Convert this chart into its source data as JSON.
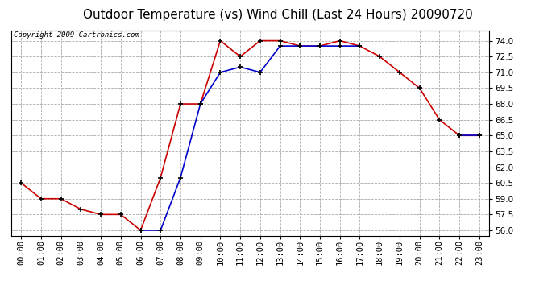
{
  "title": "Outdoor Temperature (vs) Wind Chill (Last 24 Hours) 20090720",
  "copyright_text": "Copyright 2009 Cartronics.com",
  "hours": [
    "00:00",
    "01:00",
    "02:00",
    "03:00",
    "04:00",
    "05:00",
    "06:00",
    "07:00",
    "08:00",
    "09:00",
    "10:00",
    "11:00",
    "12:00",
    "13:00",
    "14:00",
    "15:00",
    "16:00",
    "17:00",
    "18:00",
    "19:00",
    "20:00",
    "21:00",
    "22:00",
    "23:00"
  ],
  "temp": [
    60.5,
    59.0,
    59.0,
    58.0,
    57.5,
    57.5,
    56.0,
    61.0,
    68.0,
    68.0,
    74.0,
    72.5,
    74.0,
    74.0,
    73.5,
    73.5,
    74.0,
    73.5,
    72.5,
    71.0,
    69.5,
    66.5,
    65.0,
    65.0
  ],
  "windchill": [
    null,
    null,
    null,
    null,
    null,
    null,
    56.0,
    56.0,
    61.0,
    68.0,
    71.0,
    71.5,
    71.0,
    73.5,
    73.5,
    73.5,
    73.5,
    73.5,
    null,
    null,
    null,
    null,
    65.0,
    65.0
  ],
  "ylim": [
    55.5,
    75.0
  ],
  "yticks": [
    56.0,
    57.5,
    59.0,
    60.5,
    62.0,
    63.5,
    65.0,
    66.5,
    68.0,
    69.5,
    71.0,
    72.5,
    74.0
  ],
  "temp_color": "#cc0000",
  "windchill_color": "#0000cc",
  "background_color": "#ffffff",
  "grid_color": "#aaaaaa",
  "title_fontsize": 11,
  "copyright_fontsize": 6.5,
  "tick_fontsize": 7.5
}
